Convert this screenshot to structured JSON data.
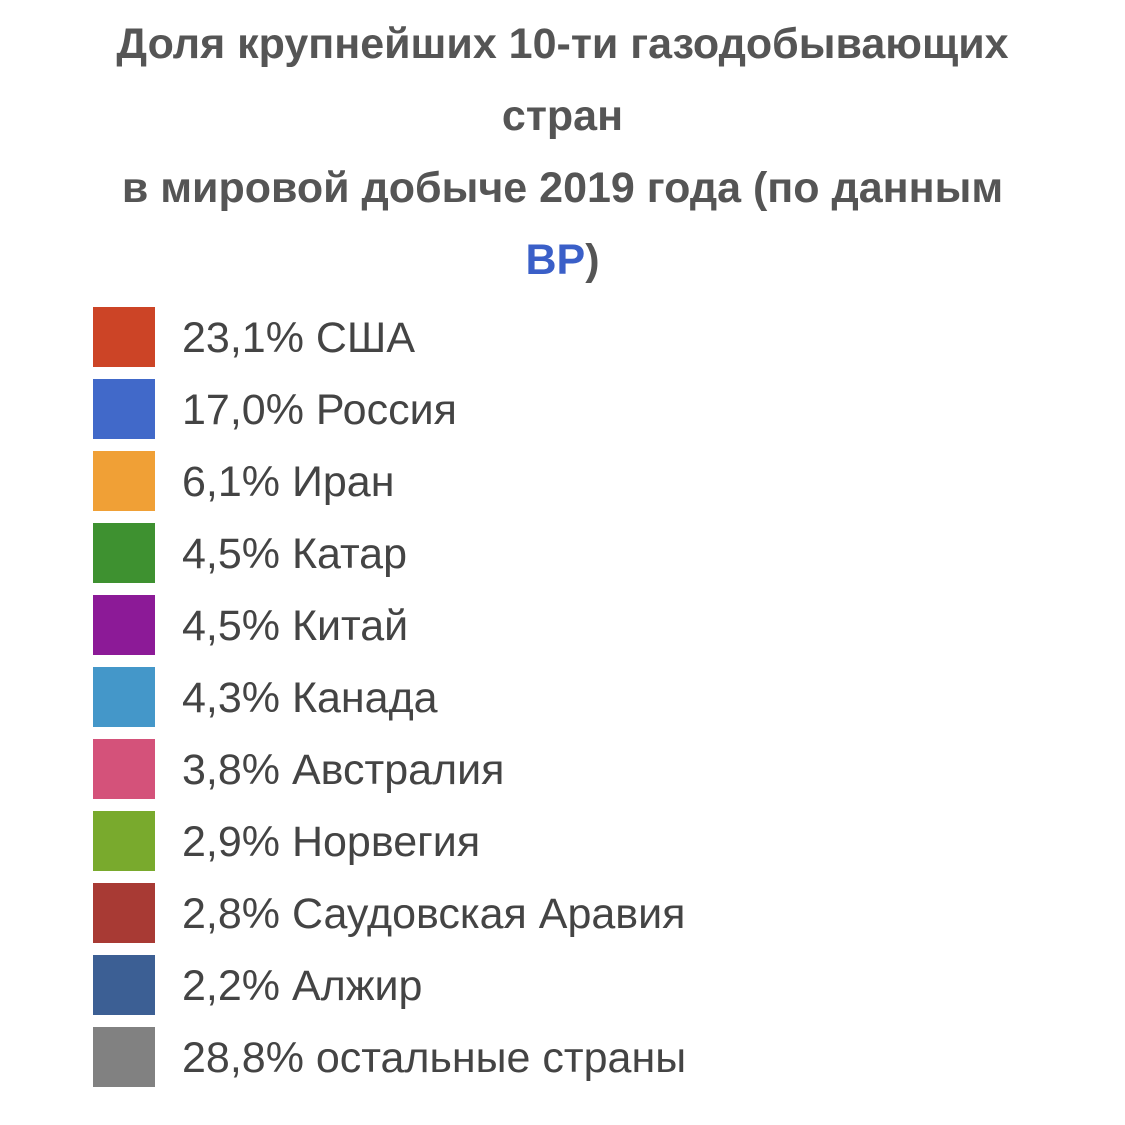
{
  "chart_data": {
    "type": "pie",
    "title_parts": {
      "line1": "Доля крупнейших 10-ти газодобывающих",
      "line2": "стран",
      "line3": "в мировой добыче 2019 года (по данным",
      "line4_link": "BP",
      "line4_suffix": ")"
    },
    "legend_position": "below-title",
    "slices": [
      {
        "label": "23,1% США",
        "value": 23.1,
        "color": "#cc4426"
      },
      {
        "label": "17,0% Россия",
        "value": 17.0,
        "color": "#4169c9"
      },
      {
        "label": "6,1% Иран",
        "value": 6.1,
        "color": "#f0a036"
      },
      {
        "label": "4,5% Катар",
        "value": 4.5,
        "color": "#3e9130"
      },
      {
        "label": "4,5% Китай",
        "value": 4.5,
        "color": "#8c1a97"
      },
      {
        "label": "4,3% Канада",
        "value": 4.3,
        "color": "#4497c9"
      },
      {
        "label": "3,8% Австралия",
        "value": 3.8,
        "color": "#d4527a"
      },
      {
        "label": "2,9% Норвегия",
        "value": 2.9,
        "color": "#79aa2d"
      },
      {
        "label": "2,8% Саудовская Аравия",
        "value": 2.8,
        "color": "#a83a34"
      },
      {
        "label": "2,2% Алжир",
        "value": 2.2,
        "color": "#3c5f94"
      },
      {
        "label": "28,8% остальные страны",
        "value": 28.8,
        "color": "#818181"
      }
    ]
  }
}
